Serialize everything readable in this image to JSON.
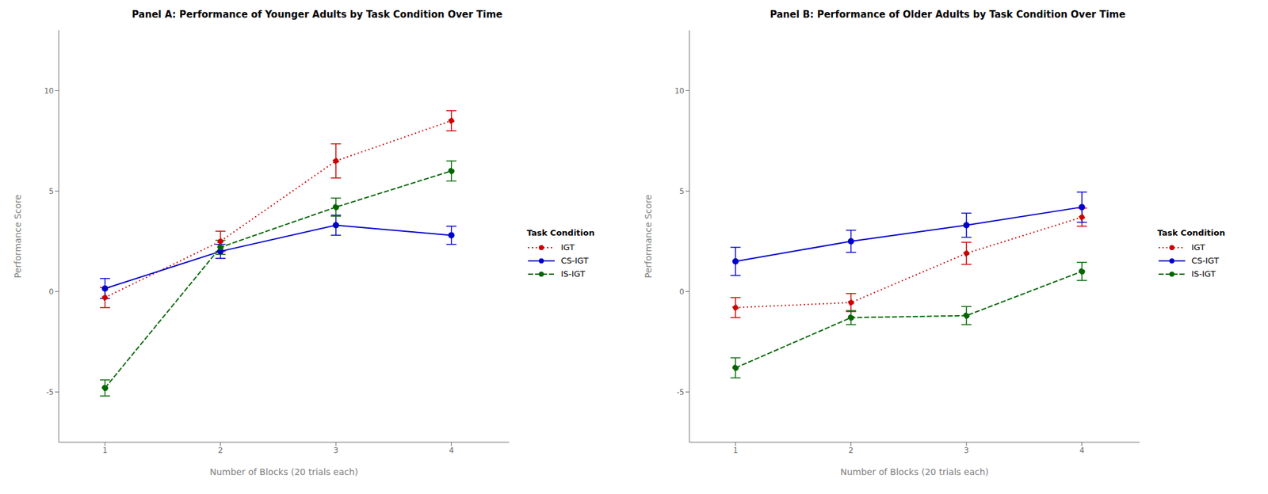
{
  "chart_data": [
    {
      "type": "line",
      "title": "Panel A: Performance of Younger Adults by Task Condition Over Time",
      "xlabel": "Number of Blocks (20 trials each)",
      "ylabel": "Performance Score",
      "x": [
        1,
        2,
        3,
        4
      ],
      "xlim": [
        0.6,
        4.5
      ],
      "xticks": [
        1,
        2,
        3,
        4
      ],
      "ylim": [
        -7.5,
        13
      ],
      "yticks": [
        -5,
        0,
        5,
        10
      ],
      "grid": false,
      "legend": "right",
      "legend_title": "Task Condition",
      "series": [
        {
          "name": "IGT",
          "color": "#CC0000",
          "line_style": "dotted",
          "marker": "circle",
          "values": [
            -0.3,
            2.5,
            6.5,
            8.5
          ],
          "error": [
            0.5,
            0.5,
            0.85,
            0.5
          ]
        },
        {
          "name": "CS-IGT",
          "color": "#0000CC",
          "line_style": "solid",
          "marker": "circle",
          "values": [
            0.15,
            2.0,
            3.3,
            2.8
          ],
          "error": [
            0.5,
            0.35,
            0.5,
            0.45
          ]
        },
        {
          "name": "IS-IGT",
          "color": "#006600",
          "line_style": "dashed",
          "marker": "circle",
          "values": [
            -4.8,
            2.2,
            4.2,
            6.0
          ],
          "error": [
            0.4,
            0.35,
            0.45,
            0.5
          ]
        }
      ]
    },
    {
      "type": "line",
      "title": "Panel B: Performance of Older Adults by Task Condition Over Time",
      "xlabel": "Number of Blocks (20 trials each)",
      "ylabel": "Performance Score",
      "x": [
        1,
        2,
        3,
        4
      ],
      "xlim": [
        0.6,
        4.5
      ],
      "xticks": [
        1,
        2,
        3,
        4
      ],
      "ylim": [
        -7.5,
        13
      ],
      "yticks": [
        -5,
        0,
        5,
        10
      ],
      "grid": false,
      "legend": "right",
      "legend_title": "Task Condition",
      "series": [
        {
          "name": "IGT",
          "color": "#CC0000",
          "line_style": "dotted",
          "marker": "circle",
          "values": [
            -0.8,
            -0.55,
            1.9,
            3.7
          ],
          "error": [
            0.5,
            0.45,
            0.55,
            0.45
          ]
        },
        {
          "name": "CS-IGT",
          "color": "#0000CC",
          "line_style": "solid",
          "marker": "circle",
          "values": [
            1.5,
            2.5,
            3.3,
            4.2
          ],
          "error": [
            0.7,
            0.55,
            0.6,
            0.75
          ]
        },
        {
          "name": "IS-IGT",
          "color": "#006600",
          "line_style": "dashed",
          "marker": "circle",
          "values": [
            -3.8,
            -1.3,
            -1.2,
            1.0
          ],
          "error": [
            0.5,
            0.35,
            0.45,
            0.45
          ]
        }
      ]
    }
  ]
}
